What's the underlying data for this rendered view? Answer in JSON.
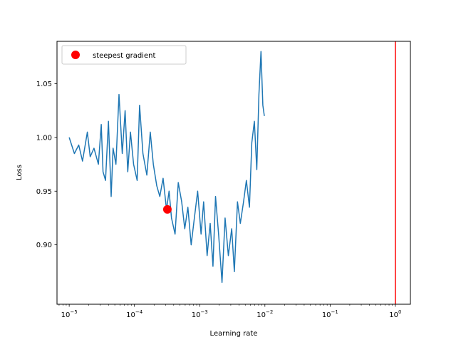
{
  "chart_data": {
    "type": "line",
    "title": "",
    "xlabel": "Learning rate",
    "ylabel": "Loss",
    "xscale": "log",
    "xlim": [
      6.5e-06,
      1.7
    ],
    "ylim": [
      0.8447,
      1.0895
    ],
    "x_ticks": [
      {
        "value": 1e-05,
        "base": "10",
        "exp": "−5"
      },
      {
        "value": 0.0001,
        "base": "10",
        "exp": "−4"
      },
      {
        "value": 0.001,
        "base": "10",
        "exp": "−3"
      },
      {
        "value": 0.01,
        "base": "10",
        "exp": "−2"
      },
      {
        "value": 0.1,
        "base": "10",
        "exp": "−1"
      },
      {
        "value": 1,
        "base": "10",
        "exp": "0"
      }
    ],
    "y_ticks": [
      {
        "value": 0.9,
        "label": "0.90"
      },
      {
        "value": 0.95,
        "label": "0.95"
      },
      {
        "value": 1.0,
        "label": "1.00"
      },
      {
        "value": 1.05,
        "label": "1.05"
      }
    ],
    "grid": false,
    "legend_position": "upper-left",
    "series": [
      {
        "name": "",
        "color": "#1f77b4",
        "x": [
          1e-05,
          1.2e-05,
          1.4e-05,
          1.6e-05,
          1.9e-05,
          2.1e-05,
          2.4e-05,
          2.8e-05,
          3.1e-05,
          3.3e-05,
          3.6e-05,
          4e-05,
          4.4e-05,
          4.7e-05,
          5.2e-05,
          5.8e-05,
          6.5e-05,
          7.2e-05,
          7.9e-05,
          8.7e-05,
          9.7e-05,
          0.00011,
          0.00012,
          0.000135,
          0.000155,
          0.000175,
          0.000195,
          0.00022,
          0.000245,
          0.000275,
          0.00031,
          0.00034,
          0.00037,
          0.00042,
          0.00047,
          0.00053,
          0.00059,
          0.00066,
          0.00074,
          0.00083,
          0.00093,
          0.00105,
          0.00115,
          0.0013,
          0.00145,
          0.0016,
          0.00175,
          0.00195,
          0.0022,
          0.00245,
          0.00275,
          0.0031,
          0.0034,
          0.0038,
          0.0042,
          0.0047,
          0.0052,
          0.0058,
          0.0063,
          0.0069,
          0.0075,
          0.0081,
          0.0087,
          0.0093,
          0.0098
        ],
        "y": [
          1.0,
          0.985,
          0.993,
          0.978,
          1.005,
          0.982,
          0.99,
          0.975,
          1.012,
          0.968,
          0.96,
          1.015,
          0.945,
          0.99,
          0.975,
          1.04,
          0.985,
          1.025,
          0.968,
          1.005,
          0.975,
          0.96,
          1.03,
          0.985,
          0.965,
          1.005,
          0.975,
          0.955,
          0.945,
          0.962,
          0.933,
          0.95,
          0.925,
          0.91,
          0.958,
          0.94,
          0.915,
          0.935,
          0.9,
          0.925,
          0.95,
          0.91,
          0.94,
          0.89,
          0.92,
          0.88,
          0.945,
          0.91,
          0.865,
          0.925,
          0.89,
          0.915,
          0.875,
          0.94,
          0.92,
          0.94,
          0.96,
          0.935,
          0.995,
          1.015,
          0.97,
          1.04,
          1.08,
          1.03,
          1.02
        ]
      }
    ],
    "marker": {
      "label": "steepest gradient",
      "x": 0.00032,
      "y": 0.933,
      "color": "#ff0000"
    },
    "vline": {
      "x": 1.0,
      "color": "#ff0000"
    }
  }
}
